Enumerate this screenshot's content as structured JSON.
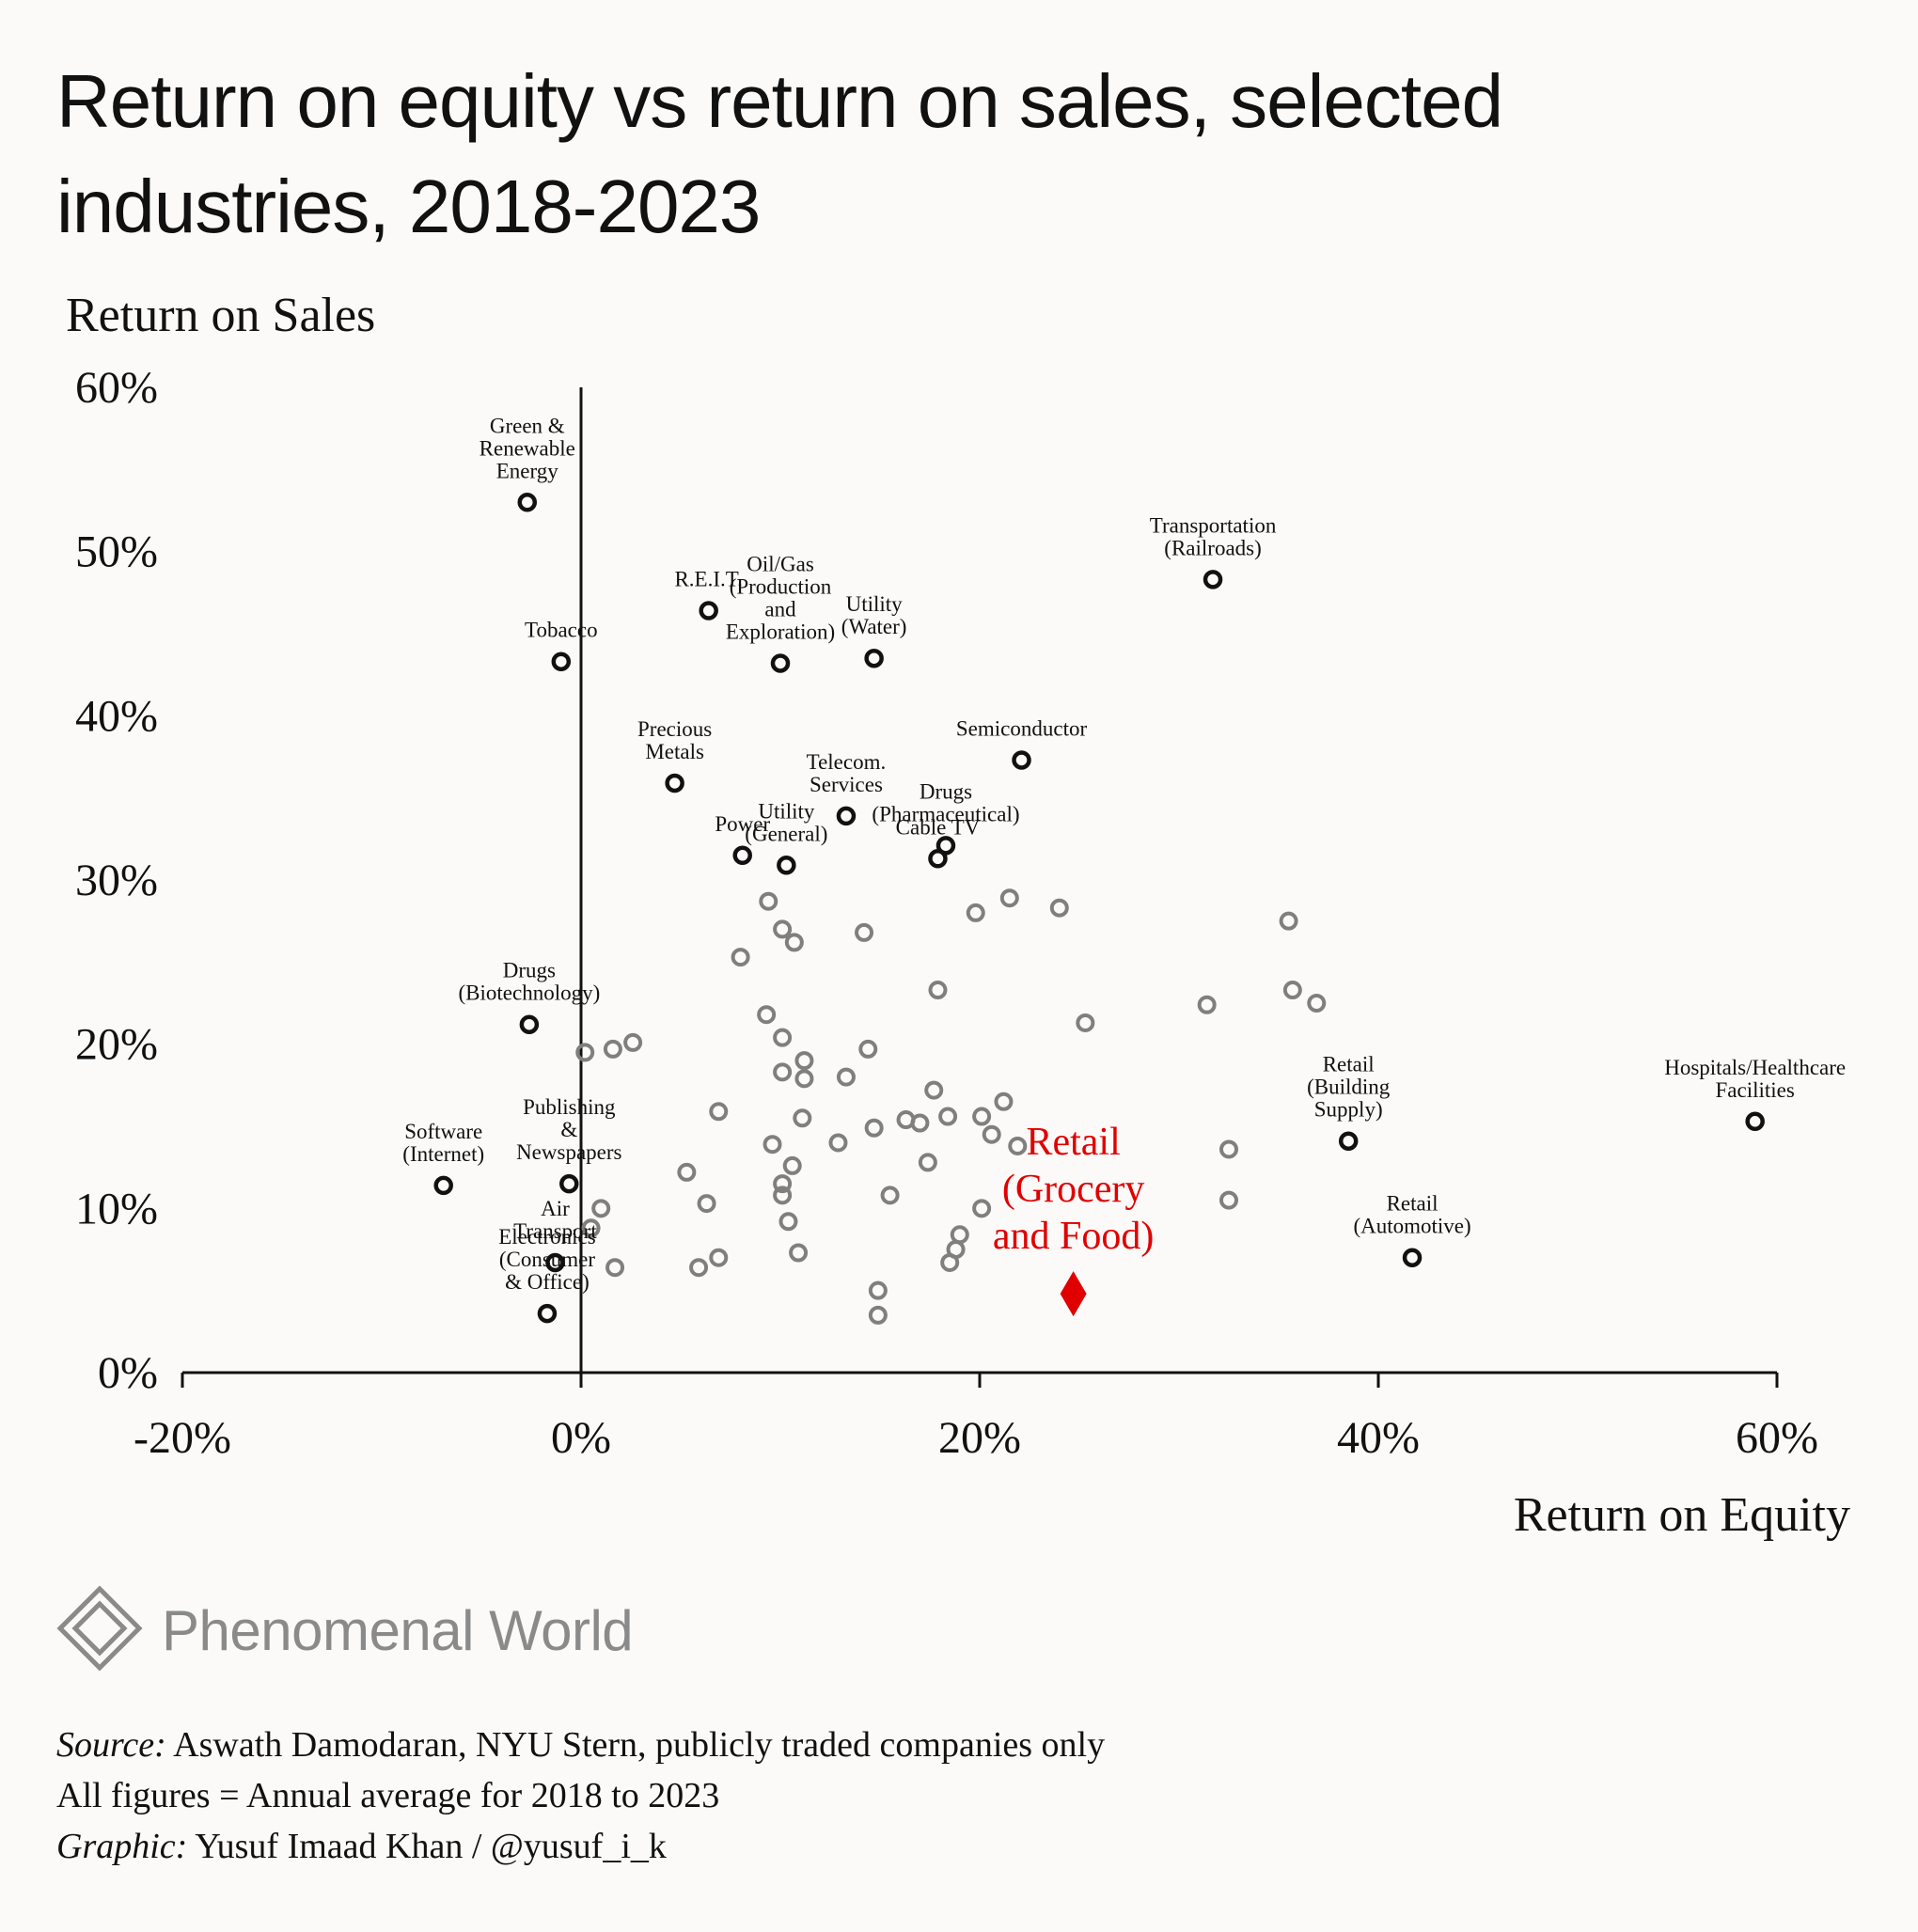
{
  "title": "Return on equity vs return on sales, selected industries, 2018-2023",
  "brand": {
    "name": "Phenomenal World",
    "logo_icon": "diamond-logo-icon",
    "color": "#8a8a8a"
  },
  "footnotes": {
    "source_label": "Source:",
    "source_text": " Aswath Damodaran, NYU Stern, publicly traded companies only",
    "figures_note": "All figures = Annual average for 2018 to 2023",
    "graphic_label": "Graphic:",
    "graphic_text": " Yusuf Imaad Khan / @yusuf_i_k"
  },
  "colors": {
    "labeled": "#111111",
    "unlabeled": "#7f7f7f",
    "highlight": "#e00000",
    "background": "#fcfaf9"
  },
  "chart_data": {
    "type": "scatter",
    "title": "Return on equity vs return on sales, selected industries, 2018-2023",
    "xlabel": "Return on Equity",
    "ylabel": "Return on Sales",
    "xlim": [
      -20,
      60
    ],
    "ylim": [
      0,
      60
    ],
    "x_ticks": [
      -20,
      0,
      20,
      40,
      60
    ],
    "y_ticks": [
      0,
      10,
      20,
      30,
      40,
      50,
      60
    ],
    "x_tick_labels": [
      "-20%",
      "0%",
      "20%",
      "40%",
      "60%"
    ],
    "y_tick_labels": [
      "0%",
      "10%",
      "20%",
      "30%",
      "40%",
      "50%",
      "60%"
    ],
    "grid": false,
    "labeled_points": [
      {
        "name": "Green & Renewable Energy",
        "lines": [
          "Green &",
          "Renewable",
          "Energy"
        ],
        "x": -2.7,
        "y": 53.0
      },
      {
        "name": "Tobacco",
        "lines": [
          "Tobacco"
        ],
        "x": -1.0,
        "y": 43.3
      },
      {
        "name": "R.E.I.T.",
        "lines": [
          "R.E.I.T."
        ],
        "x": 6.4,
        "y": 46.4
      },
      {
        "name": "Oil/Gas (Production and Exploration)",
        "lines": [
          "Oil/Gas",
          "(Production",
          "and",
          "Exploration)"
        ],
        "x": 10.0,
        "y": 43.2
      },
      {
        "name": "Utility (Water)",
        "lines": [
          "Utility",
          "(Water)"
        ],
        "x": 14.7,
        "y": 43.5
      },
      {
        "name": "Transportation (Railroads)",
        "lines": [
          "Transportation",
          "(Railroads)"
        ],
        "x": 31.7,
        "y": 48.3
      },
      {
        "name": "Semiconductor",
        "lines": [
          "Semiconductor"
        ],
        "x": 22.1,
        "y": 37.3
      },
      {
        "name": "Precious Metals",
        "lines": [
          "Precious",
          "Metals"
        ],
        "x": 4.7,
        "y": 35.9
      },
      {
        "name": "Telecom. Services",
        "lines": [
          "Telecom.",
          "Services"
        ],
        "x": 13.3,
        "y": 33.9
      },
      {
        "name": "Drugs (Pharmaceutical)",
        "lines": [
          "Drugs",
          "(Pharmaceutical)"
        ],
        "x": 18.3,
        "y": 32.1
      },
      {
        "name": "Cable TV",
        "lines": [
          "Cable TV"
        ],
        "x": 17.9,
        "y": 31.3
      },
      {
        "name": "Power",
        "lines": [
          "Power"
        ],
        "x": 8.1,
        "y": 31.5
      },
      {
        "name": "Utility (General)",
        "lines": [
          "Utility",
          "(General)"
        ],
        "x": 10.3,
        "y": 30.9
      },
      {
        "name": "Drugs (Biotechnology)",
        "lines": [
          "Drugs",
          "(Biotechnology)"
        ],
        "x": -2.6,
        "y": 21.2
      },
      {
        "name": "Software (Internet)",
        "lines": [
          "Software",
          "(Internet)"
        ],
        "x": -6.9,
        "y": 11.4
      },
      {
        "name": "Publishing & Newspapers",
        "lines": [
          "Publishing",
          "&",
          "Newspapers"
        ],
        "x": -0.6,
        "y": 11.5
      },
      {
        "name": "Air Transport",
        "lines": [
          "Air",
          "Transport"
        ],
        "x": -1.3,
        "y": 6.7
      },
      {
        "name": "Electronics (Consumer & Office)",
        "lines": [
          "Electronics",
          "(Consumer",
          "& Office)"
        ],
        "x": -1.7,
        "y": 3.6
      },
      {
        "name": "Retail (Building Supply)",
        "lines": [
          "Retail",
          "(Building",
          "Supply)"
        ],
        "x": 38.5,
        "y": 14.1
      },
      {
        "name": "Retail (Automotive)",
        "lines": [
          "Retail",
          "(Automotive)"
        ],
        "x": 41.7,
        "y": 7.0
      },
      {
        "name": "Hospitals/Healthcare Facilities",
        "lines": [
          "Hospitals/Healthcare",
          "Facilities"
        ],
        "x": 58.9,
        "y": 15.3
      }
    ],
    "highlight_point": {
      "name": "Retail (Grocery and Food)",
      "lines": [
        "Retail",
        "(Grocery",
        "and Food)"
      ],
      "x": 24.7,
      "y": 4.8,
      "marker": "diamond"
    },
    "unlabeled_points": [
      [
        9.4,
        28.7
      ],
      [
        10.1,
        27.0
      ],
      [
        10.7,
        26.2
      ],
      [
        14.2,
        26.8
      ],
      [
        8.0,
        25.3
      ],
      [
        19.8,
        28.0
      ],
      [
        21.5,
        28.9
      ],
      [
        24.0,
        28.3
      ],
      [
        35.5,
        27.5
      ],
      [
        17.9,
        23.3
      ],
      [
        35.7,
        23.3
      ],
      [
        36.9,
        22.5
      ],
      [
        31.4,
        22.4
      ],
      [
        25.3,
        21.3
      ],
      [
        9.3,
        21.8
      ],
      [
        10.1,
        20.4
      ],
      [
        0.2,
        19.5
      ],
      [
        1.6,
        19.7
      ],
      [
        2.6,
        20.1
      ],
      [
        14.4,
        19.7
      ],
      [
        11.2,
        19.0
      ],
      [
        10.1,
        18.3
      ],
      [
        11.2,
        17.9
      ],
      [
        13.3,
        18.0
      ],
      [
        17.7,
        17.2
      ],
      [
        21.2,
        16.5
      ],
      [
        6.9,
        15.9
      ],
      [
        11.1,
        15.5
      ],
      [
        14.7,
        14.9
      ],
      [
        16.3,
        15.4
      ],
      [
        17.0,
        15.2
      ],
      [
        18.4,
        15.6
      ],
      [
        20.1,
        15.6
      ],
      [
        20.6,
        14.5
      ],
      [
        21.9,
        13.8
      ],
      [
        12.9,
        14.0
      ],
      [
        9.6,
        13.9
      ],
      [
        10.6,
        12.6
      ],
      [
        17.4,
        12.8
      ],
      [
        32.5,
        13.6
      ],
      [
        5.3,
        12.2
      ],
      [
        10.1,
        11.5
      ],
      [
        10.1,
        10.8
      ],
      [
        15.5,
        10.8
      ],
      [
        6.3,
        10.3
      ],
      [
        1.0,
        10.0
      ],
      [
        20.1,
        10.0
      ],
      [
        32.5,
        10.5
      ],
      [
        10.4,
        9.2
      ],
      [
        0.5,
        8.8
      ],
      [
        19.0,
        8.4
      ],
      [
        18.8,
        7.5
      ],
      [
        10.9,
        7.3
      ],
      [
        6.9,
        7.0
      ],
      [
        1.7,
        6.4
      ],
      [
        5.9,
        6.4
      ],
      [
        18.5,
        6.7
      ],
      [
        14.9,
        5.0
      ],
      [
        14.9,
        3.5
      ]
    ]
  }
}
